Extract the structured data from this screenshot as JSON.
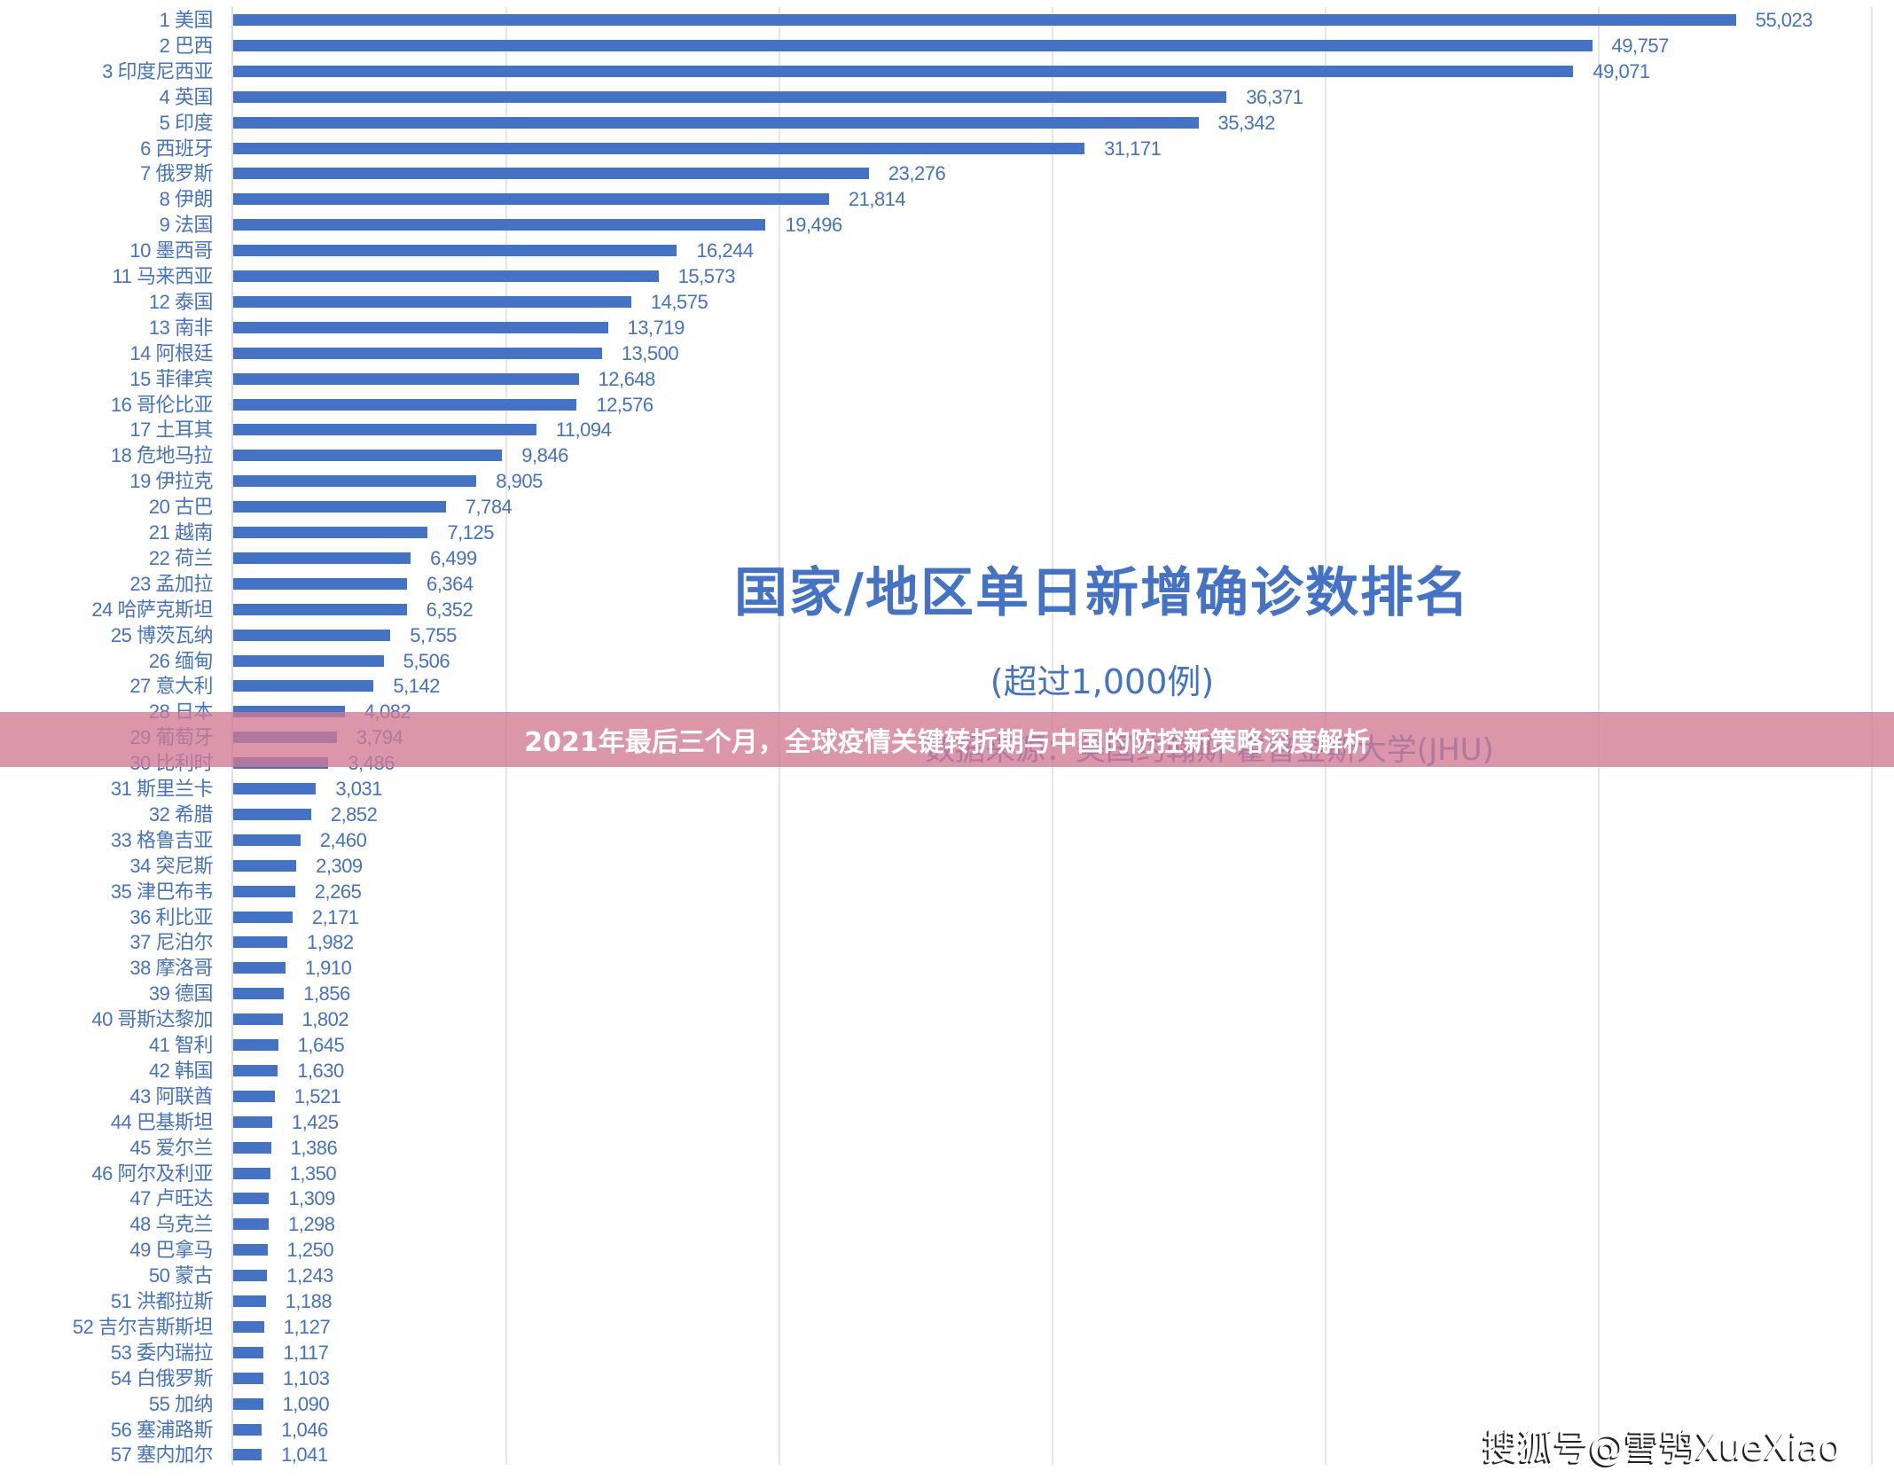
{
  "chart_data": {
    "type": "bar",
    "orientation": "horizontal",
    "title": "国家/地区单日新增确诊数排名",
    "subtitle": "(超过1,000例)",
    "source_note": "数据来源：美国约翰斯·霍普金斯大学(JHU)",
    "xlabel": "",
    "ylabel": "",
    "xlim": [
      0,
      60000
    ],
    "grid": true,
    "gridline_step": 10000,
    "bar_color": "#4472c4",
    "categories": [
      "1 美国",
      "2 巴西",
      "3 印度尼西亚",
      "4 英国",
      "5 印度",
      "6 西班牙",
      "7 俄罗斯",
      "8 伊朗",
      "9 法国",
      "10 墨西哥",
      "11 马来西亚",
      "12 泰国",
      "13 南非",
      "14 阿根廷",
      "15 菲律宾",
      "16 哥伦比亚",
      "17 土耳其",
      "18 危地马拉",
      "19 伊拉克",
      "20 古巴",
      "21 越南",
      "22 荷兰",
      "23 孟加拉",
      "24 哈萨克斯坦",
      "25 博茨瓦纳",
      "26 缅甸",
      "27 意大利",
      "28 日本",
      "29 葡萄牙",
      "30 比利时",
      "31 斯里兰卡",
      "32 希腊",
      "33 格鲁吉亚",
      "34 突尼斯",
      "35 津巴布韦",
      "36 利比亚",
      "37 尼泊尔",
      "38 摩洛哥",
      "39 德国",
      "40 哥斯达黎加",
      "41 智利",
      "42 韩国",
      "43 阿联酋",
      "44 巴基斯坦",
      "45 爱尔兰",
      "46 阿尔及利亚",
      "47 卢旺达",
      "48 乌克兰",
      "49 巴拿马",
      "50 蒙古",
      "51 洪都拉斯",
      "52 吉尔吉斯斯坦",
      "53 委内瑞拉",
      "54 白俄罗斯",
      "55 加纳",
      "56 塞浦路斯",
      "57 塞内加尔"
    ],
    "values": [
      55023,
      49757,
      49071,
      36371,
      35342,
      31171,
      23276,
      21814,
      19496,
      16244,
      15573,
      14575,
      13719,
      13500,
      12648,
      12576,
      11094,
      9846,
      8905,
      7784,
      7125,
      6499,
      6364,
      6352,
      5755,
      5506,
      5142,
      4082,
      3794,
      3486,
      3031,
      2852,
      2460,
      2309,
      2265,
      2171,
      1982,
      1910,
      1856,
      1802,
      1645,
      1630,
      1521,
      1425,
      1386,
      1350,
      1309,
      1298,
      1250,
      1243,
      1188,
      1127,
      1117,
      1103,
      1090,
      1046,
      1041
    ],
    "value_labels": [
      "55,023",
      "49,757",
      "49,071",
      "36,371",
      "35,342",
      "31,171",
      "23,276",
      "21,814",
      "19,496",
      "16,244",
      "15,573",
      "14,575",
      "13,719",
      "13,500",
      "12,648",
      "12,576",
      "11,094",
      "9,846",
      "8,905",
      "7,784",
      "7,125",
      "6,499",
      "6,364",
      "6,352",
      "5,755",
      "5,506",
      "5,142",
      "4,082",
      "3,794",
      "3,486",
      "3,031",
      "2,852",
      "2,460",
      "2,309",
      "2,265",
      "2,171",
      "1,982",
      "1,910",
      "1,856",
      "1,802",
      "1,645",
      "1,630",
      "1,521",
      "1,425",
      "1,386",
      "1,350",
      "1,309",
      "1,298",
      "1,250",
      "1,243",
      "1,188",
      "1,127",
      "1,117",
      "1,103",
      "1,090",
      "1,046",
      "1,041"
    ]
  },
  "banner": {
    "text": "2021年最后三个月，全球疫情关键转折期与中国的防控新策略深度解析",
    "color": "#d87f98"
  },
  "watermark": {
    "text": "搜狐号@雪鸮XueXiao"
  }
}
